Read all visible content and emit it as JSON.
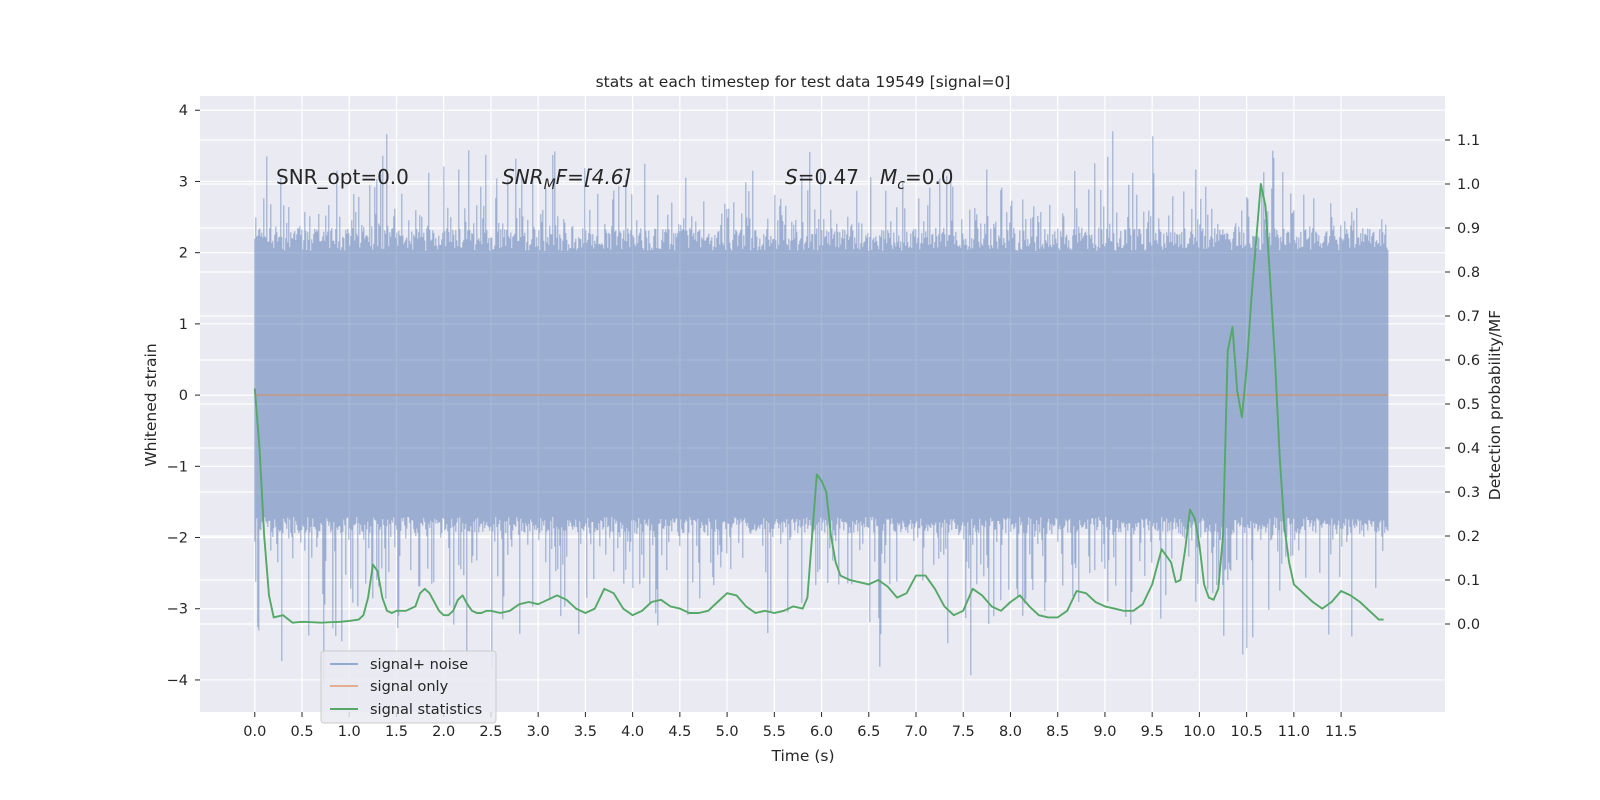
{
  "chart_data": {
    "type": "line",
    "title": "stats at each timestep for test data 19549 [signal=0]",
    "xlabel": "Time (s)",
    "ylabel_left": "Whitened strain",
    "ylabel_right": "Detection probability/MF",
    "xlim": [
      -0.58,
      12.6
    ],
    "ylim_left": [
      -4.45,
      4.2
    ],
    "ylim_right": [
      -0.2,
      1.2
    ],
    "x_ticks": [
      "0.0",
      "0.5",
      "1.0",
      "1.5",
      "2.0",
      "2.5",
      "3.0",
      "3.5",
      "4.0",
      "4.5",
      "5.0",
      "5.5",
      "6.0",
      "6.5",
      "7.0",
      "7.5",
      "8.0",
      "8.5",
      "9.0",
      "9.5",
      "10.0",
      "10.5",
      "11.0",
      "11.5"
    ],
    "y_ticks_left": [
      "−4",
      "−3",
      "−2",
      "−1",
      "0",
      "1",
      "2",
      "3",
      "4"
    ],
    "y_ticks_right": [
      "0.0",
      "0.1",
      "0.2",
      "0.3",
      "0.4",
      "0.5",
      "0.6",
      "0.7",
      "0.8",
      "0.9",
      "1.0",
      "1.1"
    ],
    "grid": true,
    "legend_position": "lower-left",
    "annotations": [
      {
        "id": "snr-opt",
        "text": "SNR_opt=0.0"
      },
      {
        "id": "snr-mf-base",
        "text": "SNR"
      },
      {
        "id": "snr-mf-sub",
        "text": "M"
      },
      {
        "id": "snr-mf-rest",
        "text": "F=[4.6]"
      },
      {
        "id": "s-base",
        "text": "S"
      },
      {
        "id": "s-rest",
        "text": "=0.47"
      },
      {
        "id": "mc-base",
        "text": "M"
      },
      {
        "id": "mc-sub",
        "text": "c"
      },
      {
        "id": "mc-rest",
        "text": "=0.0"
      }
    ],
    "series": [
      {
        "name": "signal+ noise",
        "color": "#4c72b0",
        "axis": "left",
        "x_range": [
          0.0,
          12.0
        ],
        "envelope_y": [
          -4.1,
          3.85
        ],
        "body_y": [
          -1.9,
          2.3
        ]
      },
      {
        "name": "signal only",
        "color": "#dd8452",
        "axis": "left",
        "x": [
          0.0,
          12.0
        ],
        "y": [
          0.0,
          0.0
        ]
      },
      {
        "name": "signal statistics",
        "color": "#55a868",
        "axis": "right",
        "x": [
          0.0,
          0.05,
          0.1,
          0.15,
          0.2,
          0.3,
          0.4,
          0.5,
          0.6,
          0.7,
          0.8,
          0.9,
          1.0,
          1.1,
          1.15,
          1.2,
          1.25,
          1.3,
          1.35,
          1.4,
          1.45,
          1.5,
          1.6,
          1.7,
          1.75,
          1.8,
          1.85,
          1.9,
          1.95,
          2.0,
          2.05,
          2.1,
          2.15,
          2.2,
          2.25,
          2.3,
          2.35,
          2.4,
          2.45,
          2.5,
          2.6,
          2.7,
          2.8,
          2.9,
          3.0,
          3.1,
          3.2,
          3.3,
          3.4,
          3.5,
          3.6,
          3.7,
          3.8,
          3.9,
          4.0,
          4.1,
          4.2,
          4.3,
          4.4,
          4.5,
          4.6,
          4.7,
          4.8,
          4.9,
          5.0,
          5.1,
          5.2,
          5.3,
          5.4,
          5.5,
          5.6,
          5.7,
          5.8,
          5.85,
          5.9,
          5.95,
          6.0,
          6.05,
          6.1,
          6.15,
          6.2,
          6.3,
          6.4,
          6.5,
          6.6,
          6.7,
          6.8,
          6.9,
          7.0,
          7.1,
          7.2,
          7.3,
          7.4,
          7.5,
          7.6,
          7.7,
          7.8,
          7.9,
          8.0,
          8.1,
          8.2,
          8.3,
          8.4,
          8.5,
          8.6,
          8.7,
          8.8,
          8.9,
          9.0,
          9.1,
          9.2,
          9.3,
          9.4,
          9.5,
          9.6,
          9.7,
          9.75,
          9.8,
          9.85,
          9.9,
          9.95,
          10.0,
          10.05,
          10.1,
          10.15,
          10.2,
          10.25,
          10.3,
          10.35,
          10.4,
          10.45,
          10.5,
          10.55,
          10.6,
          10.65,
          10.7,
          10.75,
          10.8,
          10.85,
          10.9,
          10.95,
          11.0,
          11.1,
          11.2,
          11.3,
          11.4,
          11.5,
          11.6,
          11.7,
          11.8,
          11.9,
          11.95
        ],
        "y": [
          0.535,
          0.4,
          0.2,
          0.065,
          0.015,
          0.02,
          0.003,
          0.005,
          0.004,
          0.003,
          0.004,
          0.005,
          0.007,
          0.01,
          0.02,
          0.06,
          0.135,
          0.12,
          0.06,
          0.03,
          0.025,
          0.03,
          0.03,
          0.04,
          0.07,
          0.08,
          0.07,
          0.05,
          0.03,
          0.02,
          0.02,
          0.03,
          0.055,
          0.065,
          0.045,
          0.03,
          0.025,
          0.025,
          0.03,
          0.03,
          0.025,
          0.03,
          0.045,
          0.05,
          0.045,
          0.055,
          0.065,
          0.055,
          0.035,
          0.025,
          0.035,
          0.08,
          0.07,
          0.035,
          0.02,
          0.03,
          0.05,
          0.055,
          0.04,
          0.035,
          0.025,
          0.025,
          0.03,
          0.05,
          0.07,
          0.065,
          0.04,
          0.025,
          0.03,
          0.025,
          0.03,
          0.04,
          0.035,
          0.06,
          0.2,
          0.34,
          0.325,
          0.3,
          0.2,
          0.14,
          0.11,
          0.1,
          0.095,
          0.09,
          0.1,
          0.085,
          0.06,
          0.07,
          0.11,
          0.11,
          0.08,
          0.04,
          0.02,
          0.03,
          0.08,
          0.065,
          0.04,
          0.03,
          0.05,
          0.065,
          0.04,
          0.02,
          0.015,
          0.015,
          0.03,
          0.075,
          0.07,
          0.05,
          0.04,
          0.035,
          0.03,
          0.03,
          0.045,
          0.09,
          0.17,
          0.14,
          0.095,
          0.1,
          0.17,
          0.26,
          0.24,
          0.18,
          0.09,
          0.06,
          0.055,
          0.08,
          0.2,
          0.62,
          0.675,
          0.53,
          0.47,
          0.58,
          0.74,
          0.87,
          1.0,
          0.95,
          0.78,
          0.6,
          0.38,
          0.22,
          0.14,
          0.09,
          0.07,
          0.05,
          0.035,
          0.05,
          0.075,
          0.065,
          0.05,
          0.03,
          0.01,
          0.01
        ]
      }
    ]
  }
}
